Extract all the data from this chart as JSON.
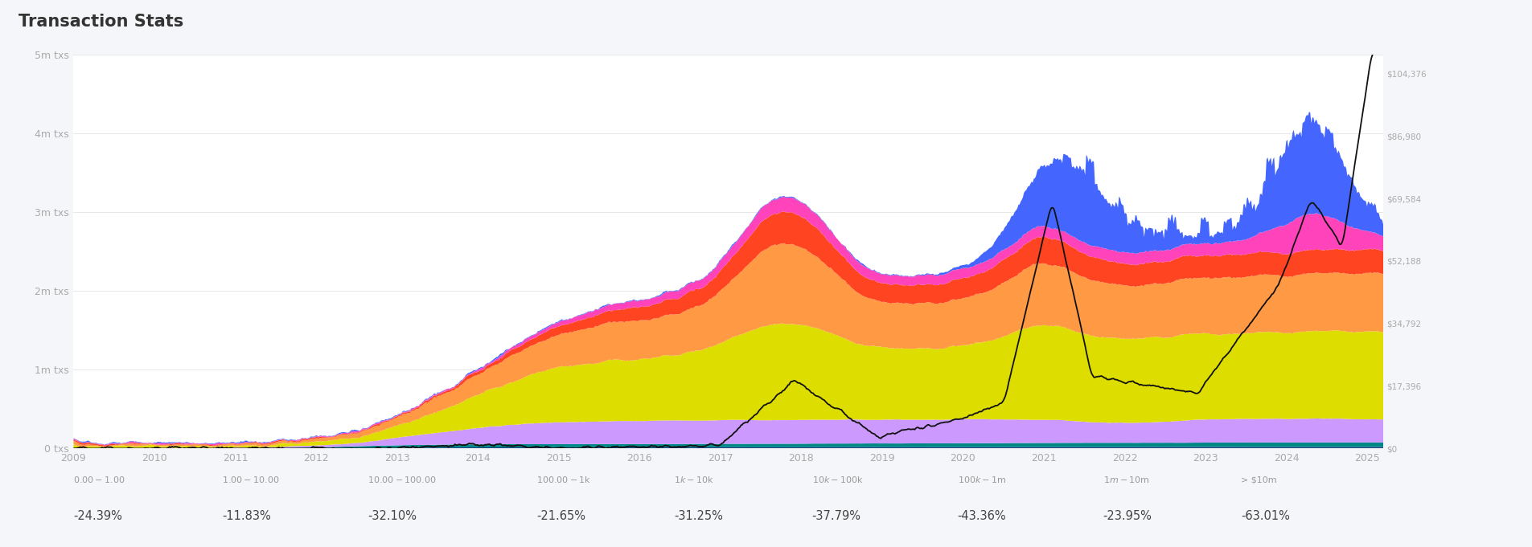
{
  "title": "Transaction Stats",
  "title_fontsize": 15,
  "title_color": "#333333",
  "background_color": "#f5f6fa",
  "chart_bg": "#ffffff",
  "categories": [
    "$0.00 - $1.00",
    "$1.00 - $10.00",
    "$10.00 - $100.00",
    "$100.00 - $1k",
    "$1k - $10k",
    "$10k - $100k",
    "$100k - $1m",
    "$1m - $10m",
    "> $10m"
  ],
  "pct_changes": [
    "-24.39%",
    "-11.83%",
    "-32.10%",
    "-21.65%",
    "-31.25%",
    "-37.79%",
    "-43.36%",
    "-23.95%",
    "-63.01%"
  ],
  "layer_colors": [
    "#1a3a7a",
    "#008888",
    "#cc99ff",
    "#dddd00",
    "#ff9944",
    "#ff4422",
    "#ff44bb",
    "#4466ff"
  ],
  "legend_line_color": "#2244dd",
  "btc_line_color": "#111111",
  "ylim": [
    0,
    5000000
  ],
  "ytick_labels": [
    "0 txs",
    "1m txs",
    "2m txs",
    "3m txs",
    "4m txs",
    "5m txs"
  ],
  "btc_price_labels": [
    "$0",
    "$17,396",
    "$34,792",
    "$52,188",
    "$69,584",
    "$86,980",
    "$104,376"
  ],
  "btc_price_values": [
    0,
    17396,
    34792,
    52188,
    69584,
    86980,
    104376
  ],
  "btc_max": 104376,
  "year_start": 2009,
  "year_end": 2025
}
